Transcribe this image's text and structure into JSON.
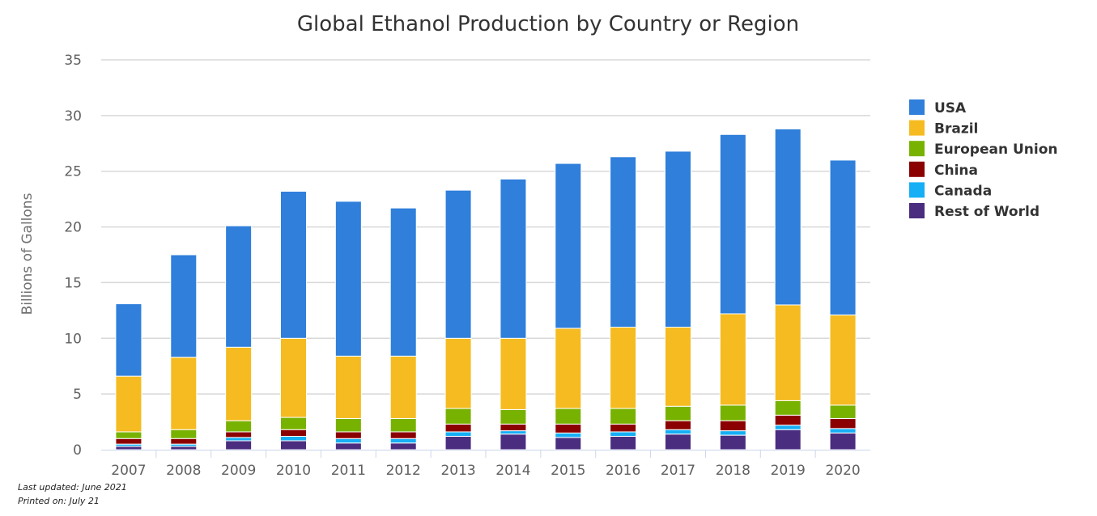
{
  "chart_data": {
    "type": "bar",
    "stacked": true,
    "title": "Global Ethanol Production by Country or Region",
    "xlabel": "",
    "ylabel": "Billions of Gallons",
    "ylim": [
      0,
      35
    ],
    "yticks": [
      "0",
      "5",
      "10",
      "15",
      "20",
      "25",
      "30",
      "35"
    ],
    "grid": true,
    "legend_position": "right",
    "categories": [
      "2007",
      "2008",
      "2009",
      "2010",
      "2011",
      "2012",
      "2013",
      "2014",
      "2015",
      "2016",
      "2017",
      "2018",
      "2019",
      "2020"
    ],
    "series": [
      {
        "name": "Rest of World",
        "color": "#4a2d7f",
        "values": [
          0.3,
          0.3,
          0.8,
          0.8,
          0.6,
          0.6,
          1.2,
          1.4,
          1.1,
          1.2,
          1.4,
          1.3,
          1.8,
          1.5
        ]
      },
      {
        "name": "Canada",
        "color": "#16aff5",
        "values": [
          0.2,
          0.2,
          0.3,
          0.4,
          0.4,
          0.4,
          0.4,
          0.3,
          0.4,
          0.4,
          0.4,
          0.4,
          0.4,
          0.4
        ]
      },
      {
        "name": "China",
        "color": "#8b0000",
        "values": [
          0.5,
          0.5,
          0.5,
          0.6,
          0.6,
          0.6,
          0.7,
          0.6,
          0.8,
          0.7,
          0.8,
          0.9,
          0.9,
          0.9
        ]
      },
      {
        "name": "European Union",
        "color": "#78b200",
        "values": [
          0.6,
          0.8,
          1.0,
          1.1,
          1.2,
          1.2,
          1.4,
          1.3,
          1.4,
          1.4,
          1.3,
          1.4,
          1.3,
          1.2
        ]
      },
      {
        "name": "Brazil",
        "color": "#f5bb20",
        "values": [
          5.0,
          6.5,
          6.6,
          7.1,
          5.6,
          5.6,
          6.3,
          6.4,
          7.2,
          7.3,
          7.1,
          8.2,
          8.6,
          8.1
        ]
      },
      {
        "name": "USA",
        "color": "#2f7fdb",
        "values": [
          6.5,
          9.2,
          10.9,
          13.2,
          13.9,
          13.3,
          13.3,
          14.3,
          14.8,
          15.3,
          15.8,
          16.1,
          15.8,
          13.9
        ]
      }
    ],
    "legend_order": [
      "USA",
      "Brazil",
      "European Union",
      "China",
      "Canada",
      "Rest of World"
    ]
  },
  "footnotes": {
    "updated": "Last updated: June 2021",
    "printed": "Printed on: July 21"
  }
}
